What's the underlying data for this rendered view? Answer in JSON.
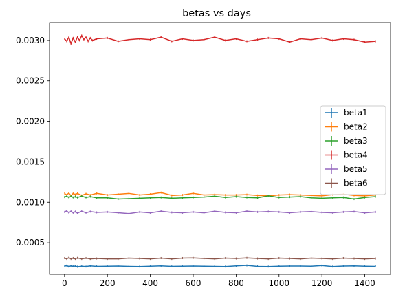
{
  "chart_data": {
    "type": "line",
    "title": "betas vs days",
    "xlabel": "",
    "ylabel": "",
    "xlim": [
      -70,
      1520
    ],
    "ylim": [
      0.00011,
      0.00322
    ],
    "xticks": [
      0,
      200,
      400,
      600,
      800,
      1000,
      1200,
      1400
    ],
    "xtick_labels": [
      "0",
      "200",
      "400",
      "600",
      "800",
      "1000",
      "1200",
      "1400"
    ],
    "yticks": [
      0.0005,
      0.001,
      0.0015,
      0.002,
      0.0025,
      0.003
    ],
    "ytick_labels": [
      "0.0005",
      "0.0010",
      "0.0015",
      "0.0020",
      "0.0025",
      "0.0030"
    ],
    "grid": false,
    "legend_position": "center-right",
    "error_bars": true,
    "series": [
      {
        "name": "beta1",
        "color": "#1f77b4",
        "points": [
          [
            0,
            0.00021
          ],
          [
            10,
            0.000218
          ],
          [
            20,
            0.000205
          ],
          [
            30,
            0.000215
          ],
          [
            40,
            0.000208
          ],
          [
            50,
            0.000212
          ],
          [
            60,
            0.000204
          ],
          [
            80,
            0.00021
          ],
          [
            100,
            0.000206
          ],
          [
            120,
            0.000214
          ],
          [
            150,
            0.000208
          ],
          [
            200,
            0.00021
          ],
          [
            250,
            0.000212
          ],
          [
            300,
            0.000208
          ],
          [
            350,
            0.000206
          ],
          [
            400,
            0.00021
          ],
          [
            450,
            0.000214
          ],
          [
            500,
            0.000208
          ],
          [
            550,
            0.00021
          ],
          [
            600,
            0.000212
          ],
          [
            650,
            0.00021
          ],
          [
            700,
            0.000208
          ],
          [
            750,
            0.000206
          ],
          [
            800,
            0.000214
          ],
          [
            850,
            0.00022
          ],
          [
            900,
            0.000208
          ],
          [
            950,
            0.000206
          ],
          [
            1000,
            0.00021
          ],
          [
            1050,
            0.000212
          ],
          [
            1100,
            0.000212
          ],
          [
            1150,
            0.00021
          ],
          [
            1200,
            0.000218
          ],
          [
            1250,
            0.000206
          ],
          [
            1300,
            0.000212
          ],
          [
            1350,
            0.000214
          ],
          [
            1400,
            0.00021
          ],
          [
            1450,
            0.000208
          ]
        ]
      },
      {
        "name": "beta2",
        "color": "#ff7f0e",
        "points": [
          [
            0,
            0.00111
          ],
          [
            10,
            0.00109
          ],
          [
            20,
            0.001115
          ],
          [
            30,
            0.00108
          ],
          [
            40,
            0.00111
          ],
          [
            50,
            0.001095
          ],
          [
            60,
            0.00111
          ],
          [
            80,
            0.001085
          ],
          [
            100,
            0.001105
          ],
          [
            120,
            0.00109
          ],
          [
            150,
            0.00111
          ],
          [
            200,
            0.00109
          ],
          [
            250,
            0.0011
          ],
          [
            300,
            0.00111
          ],
          [
            350,
            0.00109
          ],
          [
            400,
            0.0011
          ],
          [
            450,
            0.00112
          ],
          [
            500,
            0.001085
          ],
          [
            550,
            0.00109
          ],
          [
            600,
            0.00111
          ],
          [
            650,
            0.00109
          ],
          [
            700,
            0.001095
          ],
          [
            750,
            0.00109
          ],
          [
            800,
            0.00109
          ],
          [
            850,
            0.001095
          ],
          [
            900,
            0.001085
          ],
          [
            950,
            0.00108
          ],
          [
            1000,
            0.00109
          ],
          [
            1050,
            0.001095
          ],
          [
            1100,
            0.00109
          ],
          [
            1150,
            0.001085
          ],
          [
            1200,
            0.00108
          ],
          [
            1250,
            0.001095
          ],
          [
            1300,
            0.0011
          ],
          [
            1350,
            0.001085
          ],
          [
            1400,
            0.00108
          ],
          [
            1450,
            0.00109
          ]
        ]
      },
      {
        "name": "beta3",
        "color": "#2ca02c",
        "points": [
          [
            0,
            0.001065
          ],
          [
            10,
            0.001075
          ],
          [
            20,
            0.00106
          ],
          [
            30,
            0.001075
          ],
          [
            40,
            0.00106
          ],
          [
            50,
            0.00107
          ],
          [
            60,
            0.00106
          ],
          [
            80,
            0.001075
          ],
          [
            100,
            0.00106
          ],
          [
            120,
            0.00107
          ],
          [
            150,
            0.001055
          ],
          [
            200,
            0.001055
          ],
          [
            250,
            0.00104
          ],
          [
            300,
            0.001045
          ],
          [
            350,
            0.00105
          ],
          [
            400,
            0.001055
          ],
          [
            450,
            0.00106
          ],
          [
            500,
            0.00105
          ],
          [
            550,
            0.001055
          ],
          [
            600,
            0.00106
          ],
          [
            650,
            0.001065
          ],
          [
            700,
            0.001075
          ],
          [
            750,
            0.00106
          ],
          [
            800,
            0.00107
          ],
          [
            850,
            0.00106
          ],
          [
            900,
            0.001055
          ],
          [
            950,
            0.00108
          ],
          [
            1000,
            0.00106
          ],
          [
            1050,
            0.001065
          ],
          [
            1100,
            0.00107
          ],
          [
            1150,
            0.001055
          ],
          [
            1200,
            0.00105
          ],
          [
            1250,
            0.001055
          ],
          [
            1300,
            0.00106
          ],
          [
            1350,
            0.00104
          ],
          [
            1400,
            0.00106
          ],
          [
            1450,
            0.00107
          ]
        ]
      },
      {
        "name": "beta4",
        "color": "#d62728",
        "points": [
          [
            0,
            0.00302
          ],
          [
            10,
            0.00299
          ],
          [
            20,
            0.00304
          ],
          [
            30,
            0.00296
          ],
          [
            40,
            0.00303
          ],
          [
            50,
            0.00298
          ],
          [
            60,
            0.00304
          ],
          [
            70,
            0.003
          ],
          [
            80,
            0.00306
          ],
          [
            90,
            0.00301
          ],
          [
            100,
            0.00304
          ],
          [
            110,
            0.00299
          ],
          [
            120,
            0.00303
          ],
          [
            130,
            0.003
          ],
          [
            150,
            0.00302
          ],
          [
            200,
            0.00303
          ],
          [
            250,
            0.00299
          ],
          [
            300,
            0.00301
          ],
          [
            350,
            0.00302
          ],
          [
            400,
            0.00301
          ],
          [
            450,
            0.00304
          ],
          [
            500,
            0.00299
          ],
          [
            550,
            0.00302
          ],
          [
            600,
            0.003
          ],
          [
            650,
            0.00301
          ],
          [
            700,
            0.00304
          ],
          [
            750,
            0.003
          ],
          [
            800,
            0.00302
          ],
          [
            850,
            0.00299
          ],
          [
            900,
            0.00301
          ],
          [
            950,
            0.00303
          ],
          [
            1000,
            0.00302
          ],
          [
            1050,
            0.00298
          ],
          [
            1100,
            0.00302
          ],
          [
            1150,
            0.00301
          ],
          [
            1200,
            0.00303
          ],
          [
            1250,
            0.003
          ],
          [
            1300,
            0.00302
          ],
          [
            1350,
            0.00301
          ],
          [
            1400,
            0.00298
          ],
          [
            1450,
            0.00299
          ]
        ]
      },
      {
        "name": "beta5",
        "color": "#9467bd",
        "points": [
          [
            0,
            0.00088
          ],
          [
            10,
            0.000895
          ],
          [
            20,
            0.00087
          ],
          [
            30,
            0.00089
          ],
          [
            40,
            0.00087
          ],
          [
            50,
            0.000885
          ],
          [
            60,
            0.000865
          ],
          [
            80,
            0.00089
          ],
          [
            100,
            0.00087
          ],
          [
            120,
            0.000885
          ],
          [
            150,
            0.000875
          ],
          [
            200,
            0.00088
          ],
          [
            250,
            0.00087
          ],
          [
            300,
            0.00086
          ],
          [
            350,
            0.00088
          ],
          [
            400,
            0.00087
          ],
          [
            450,
            0.00089
          ],
          [
            500,
            0.000875
          ],
          [
            550,
            0.00087
          ],
          [
            600,
            0.00088
          ],
          [
            650,
            0.00087
          ],
          [
            700,
            0.00089
          ],
          [
            750,
            0.000875
          ],
          [
            800,
            0.00087
          ],
          [
            850,
            0.00089
          ],
          [
            900,
            0.00088
          ],
          [
            950,
            0.000885
          ],
          [
            1000,
            0.00088
          ],
          [
            1050,
            0.00087
          ],
          [
            1100,
            0.00088
          ],
          [
            1150,
            0.000885
          ],
          [
            1200,
            0.000875
          ],
          [
            1250,
            0.00087
          ],
          [
            1300,
            0.00088
          ],
          [
            1350,
            0.000885
          ],
          [
            1400,
            0.00087
          ],
          [
            1450,
            0.00088
          ]
        ]
      },
      {
        "name": "beta6",
        "color": "#8c564b",
        "points": [
          [
            0,
            0.00031
          ],
          [
            10,
            0.0003
          ],
          [
            20,
            0.000315
          ],
          [
            30,
            0.0003
          ],
          [
            40,
            0.00031
          ],
          [
            50,
            0.0003
          ],
          [
            60,
            0.000312
          ],
          [
            80,
            0.0003
          ],
          [
            100,
            0.00031
          ],
          [
            120,
            0.0003
          ],
          [
            150,
            0.000305
          ],
          [
            200,
            0.0003
          ],
          [
            250,
            0.0003
          ],
          [
            300,
            0.00031
          ],
          [
            350,
            0.000305
          ],
          [
            400,
            0.0003
          ],
          [
            450,
            0.00031
          ],
          [
            500,
            0.0003
          ],
          [
            550,
            0.00031
          ],
          [
            600,
            0.000312
          ],
          [
            650,
            0.000305
          ],
          [
            700,
            0.0003
          ],
          [
            750,
            0.00031
          ],
          [
            800,
            0.000305
          ],
          [
            850,
            0.000312
          ],
          [
            900,
            0.000305
          ],
          [
            950,
            0.0003
          ],
          [
            1000,
            0.00031
          ],
          [
            1050,
            0.000305
          ],
          [
            1100,
            0.0003
          ],
          [
            1150,
            0.00031
          ],
          [
            1200,
            0.000305
          ],
          [
            1250,
            0.0003
          ],
          [
            1300,
            0.00031
          ],
          [
            1350,
            0.000305
          ],
          [
            1400,
            0.0003
          ],
          [
            1450,
            0.000305
          ]
        ]
      }
    ]
  }
}
